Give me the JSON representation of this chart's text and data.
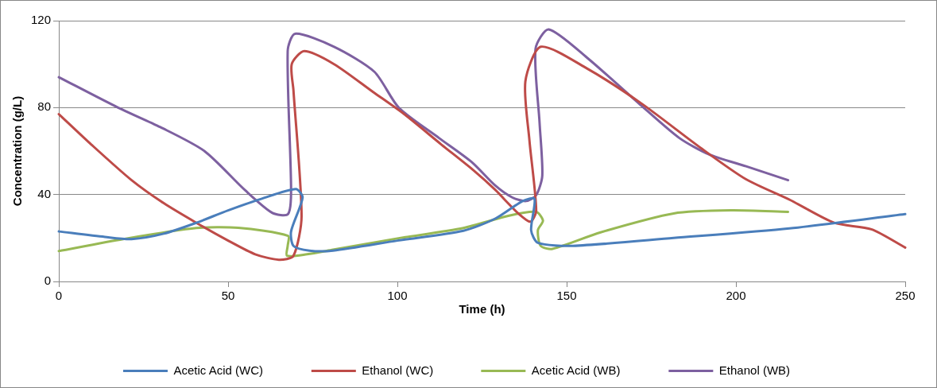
{
  "chart_data": {
    "type": "line",
    "xlabel": "Time (h)",
    "ylabel": "Concentration (g/L)",
    "xlim": [
      0,
      250
    ],
    "xticks": [
      0,
      50,
      100,
      150,
      200,
      250
    ],
    "ylim": [
      0,
      120
    ],
    "yticks": [
      0,
      40,
      80,
      120
    ],
    "grid": "y",
    "legend": "bottom",
    "marker": "none",
    "line_style": "solid",
    "series": [
      {
        "name": "Acetic Acid (WC)",
        "color": "#4a7ebb",
        "x": [
          0,
          13.6,
          21.5,
          31,
          40.6,
          50,
          59.8,
          70,
          72,
          68.6,
          69.3,
          74,
          81,
          100,
          119.5,
          129,
          137,
          140.5,
          139.5,
          141.5,
          151.8,
          181.6,
          215.8,
          250
        ],
        "values": [
          23,
          20.5,
          19.5,
          22,
          27,
          32.7,
          38,
          42.5,
          38.6,
          23,
          16.4,
          14.2,
          14.2,
          18.8,
          23.3,
          29,
          37,
          38,
          23.6,
          17.8,
          16.4,
          20,
          24.4,
          31
        ]
      },
      {
        "name": "Ethanol (WC)",
        "color": "#be4b48",
        "x": [
          0,
          9.6,
          21.5,
          31,
          40.6,
          50,
          58,
          65,
          69.3,
          71.7,
          69.3,
          68.8,
          72.5,
          81.3,
          93,
          102,
          113,
          122.6,
          129,
          135.5,
          139.3,
          141,
          139,
          137.8,
          142.4,
          156,
          172,
          190,
          203,
          216,
          229,
          240,
          250
        ],
        "values": [
          77,
          63,
          46.6,
          36,
          27,
          18.8,
          12.5,
          10,
          11.8,
          30,
          88,
          100,
          106,
          100,
          87,
          77,
          63,
          51,
          42,
          31.6,
          27.5,
          32.7,
          65,
          92,
          108,
          98,
          82,
          61,
          47,
          37.5,
          27,
          24,
          15.6
        ]
      },
      {
        "name": "Acetic Acid (WB)",
        "color": "#98b954",
        "x": [
          0,
          19,
          40.6,
          53,
          67.7,
          67.6,
          67.4,
          73.3,
          81,
          100,
          119.5,
          133,
          141,
          143,
          141.5,
          142.3,
          145.8,
          160,
          181.6,
          198.6,
          215.4
        ],
        "values": [
          14,
          19.5,
          24.6,
          24.7,
          21,
          16.4,
          11.8,
          12.5,
          14.6,
          19.8,
          24.6,
          30.3,
          32,
          28,
          23.6,
          16.4,
          15,
          22.6,
          31.3,
          32.7,
          32
        ]
      },
      {
        "name": "Ethanol (WB)",
        "color": "#7d60a0",
        "x": [
          0,
          17.5,
          30,
          43,
          55,
          63,
          67.7,
          68.6,
          67.6,
          69.8,
          81.3,
          93.2,
          100.4,
          112.3,
          121.9,
          129,
          134,
          138,
          141,
          142.8,
          142,
          140.8,
          144.7,
          156,
          172,
          183.3,
          192,
          203,
          215.4
        ],
        "values": [
          94,
          80,
          71,
          60,
          42,
          31.6,
          31,
          42,
          106,
          114,
          108,
          96.5,
          80,
          66,
          55,
          44,
          38.6,
          37,
          39.7,
          48.7,
          73,
          107,
          116,
          103,
          81,
          66,
          58.5,
          53,
          46.6
        ]
      }
    ]
  }
}
